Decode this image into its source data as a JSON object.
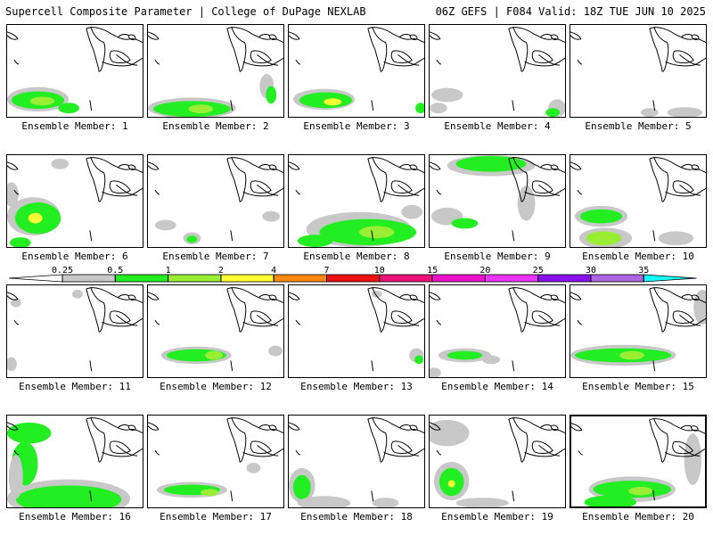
{
  "header": {
    "title": "Supercell Composite Parameter | College of DuPage NEXLAB",
    "run_info": "06Z GEFS | F084 Valid: 18Z TUE JUN 10 2025"
  },
  "member_prefix": "Ensemble Member: ",
  "members": [
    {
      "label": "Ensemble Member: 1",
      "selected": false
    },
    {
      "label": "Ensemble Member: 2",
      "selected": false
    },
    {
      "label": "Ensemble Member: 3",
      "selected": false
    },
    {
      "label": "Ensemble Member: 4",
      "selected": false
    },
    {
      "label": "Ensemble Member: 5",
      "selected": false
    },
    {
      "label": "Ensemble Member: 6",
      "selected": false
    },
    {
      "label": "Ensemble Member: 7",
      "selected": false
    },
    {
      "label": "Ensemble Member: 8",
      "selected": false
    },
    {
      "label": "Ensemble Member: 9",
      "selected": false
    },
    {
      "label": "Ensemble Member: 10",
      "selected": false
    },
    {
      "label": "Ensemble Member: 11",
      "selected": false
    },
    {
      "label": "Ensemble Member: 12",
      "selected": false
    },
    {
      "label": "Ensemble Member: 13",
      "selected": false
    },
    {
      "label": "Ensemble Member: 14",
      "selected": false
    },
    {
      "label": "Ensemble Member: 15",
      "selected": false
    },
    {
      "label": "Ensemble Member: 16",
      "selected": false
    },
    {
      "label": "Ensemble Member: 17",
      "selected": false
    },
    {
      "label": "Ensemble Member: 18",
      "selected": false
    },
    {
      "label": "Ensemble Member: 19",
      "selected": false
    },
    {
      "label": "Ensemble Member: 20",
      "selected": true
    }
  ],
  "legend": {
    "thresholds": [
      "0.25",
      "0.5",
      "1",
      "2",
      "4",
      "7",
      "10",
      "15",
      "20",
      "25",
      "30",
      "35"
    ],
    "colors": [
      "#c8c8c8",
      "#22ee22",
      "#99ee33",
      "#ffff33",
      "#ff8811",
      "#ee1111",
      "#ee1177",
      "#ee11cc",
      "#ee33ff",
      "#8811ee",
      "#aa66dd",
      "#11ffff"
    ]
  }
}
